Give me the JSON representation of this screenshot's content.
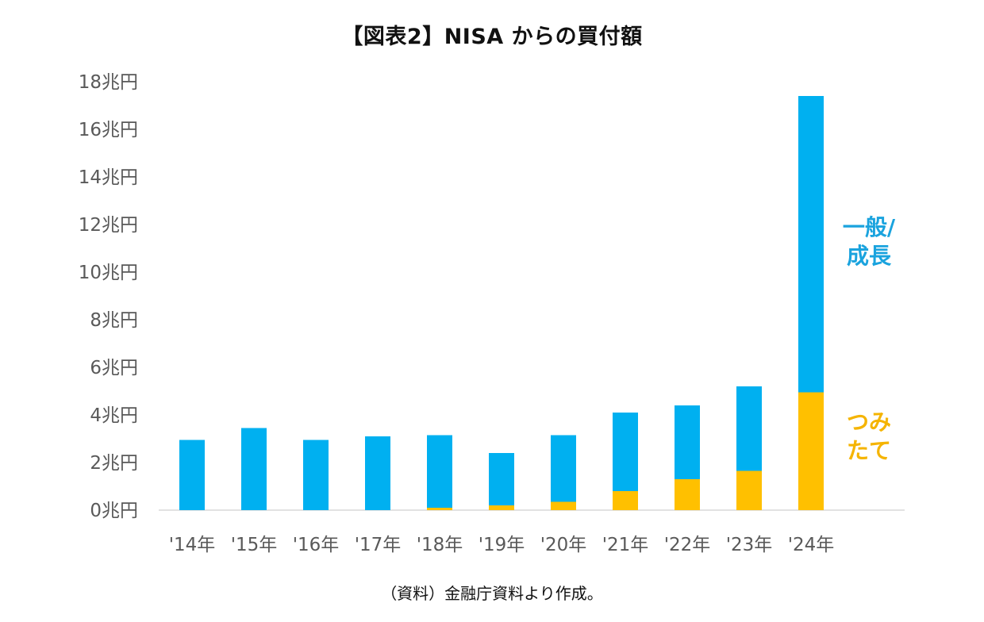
{
  "chart_data": {
    "type": "bar",
    "stacked": true,
    "title": "【図表2】NISA からの買付額",
    "source_note": "（資料）金融庁資料より作成。",
    "categories": [
      "'14年",
      "'15年",
      "'16年",
      "'17年",
      "'18年",
      "'19年",
      "'20年",
      "'21年",
      "'22年",
      "'23年",
      "'24年"
    ],
    "series": [
      {
        "name": "つみたて",
        "color": "#FFC000",
        "values": [
          0,
          0,
          0,
          0,
          0.1,
          0.2,
          0.35,
          0.8,
          1.3,
          1.65,
          4.95
        ]
      },
      {
        "name": "一般/成長",
        "color": "#00B0F0",
        "values": [
          2.95,
          3.45,
          2.95,
          3.1,
          3.05,
          2.2,
          2.8,
          3.3,
          3.1,
          3.55,
          12.45
        ]
      }
    ],
    "series_labels": [
      {
        "lines": [
          "一般/",
          "成長"
        ],
        "color": "#1AA3DE"
      },
      {
        "lines": [
          "つみ",
          "たて"
        ],
        "color": "#F5B400"
      }
    ],
    "yticks": [
      "0兆円",
      "2兆円",
      "4兆円",
      "6兆円",
      "8兆円",
      "10兆円",
      "12兆円",
      "14兆円",
      "16兆円",
      "18兆円"
    ],
    "ylim": [
      0,
      18
    ],
    "xlabel": "",
    "ylabel": "",
    "grid": false
  }
}
